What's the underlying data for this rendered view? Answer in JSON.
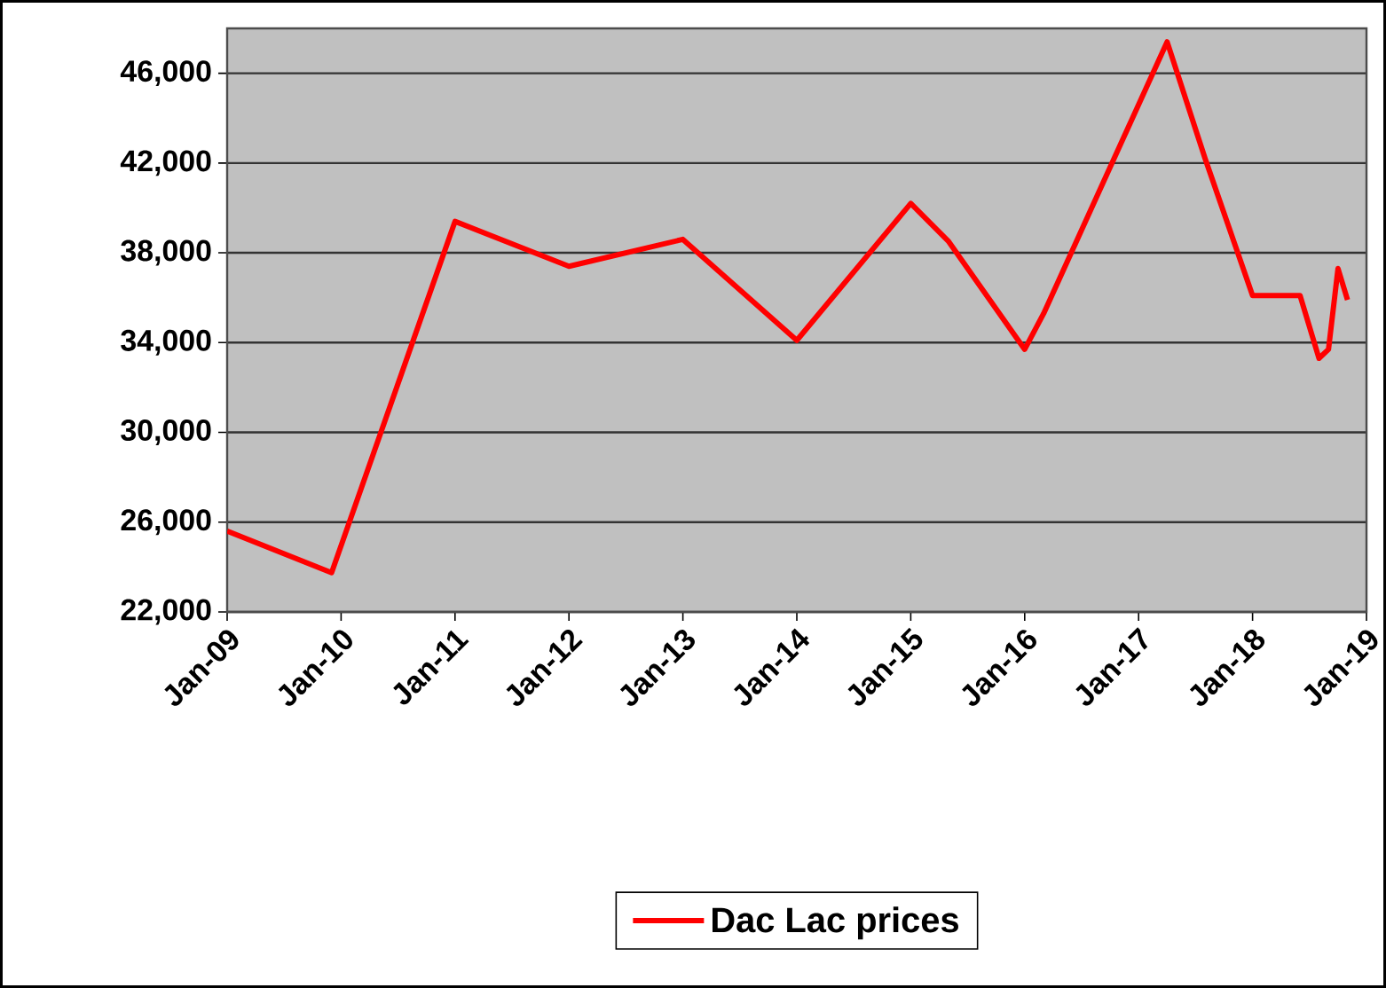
{
  "chart_data": {
    "type": "line",
    "x": [
      "2009-01",
      "2009-12",
      "2011-01",
      "2012-01",
      "2013-01",
      "2014-01",
      "2015-01",
      "2015-05",
      "2016-01",
      "2016-03",
      "2017-04",
      "2017-08",
      "2018-01",
      "2018-06",
      "2018-08",
      "2018-09",
      "2018-10",
      "2018-11"
    ],
    "series": [
      {
        "name": "Dac Lac prices",
        "color": "#ff0000",
        "values": [
          25600,
          23750,
          39400,
          37400,
          38600,
          34100,
          40200,
          38500,
          33700,
          35300,
          47400,
          42200,
          36100,
          36100,
          33300,
          33700,
          37300,
          35900
        ]
      }
    ],
    "xlim": [
      "2009-01",
      "2019-01"
    ],
    "xticks": [
      {
        "value": "2009-01",
        "label": "Jan-09"
      },
      {
        "value": "2010-01",
        "label": "Jan-10"
      },
      {
        "value": "2011-01",
        "label": "Jan-11"
      },
      {
        "value": "2012-01",
        "label": "Jan-12"
      },
      {
        "value": "2013-01",
        "label": "Jan-13"
      },
      {
        "value": "2014-01",
        "label": "Jan-14"
      },
      {
        "value": "2015-01",
        "label": "Jan-15"
      },
      {
        "value": "2016-01",
        "label": "Jan-16"
      },
      {
        "value": "2017-01",
        "label": "Jan-17"
      },
      {
        "value": "2018-01",
        "label": "Jan-18"
      },
      {
        "value": "2019-01",
        "label": "Jan-19"
      }
    ],
    "ylim": [
      22000,
      48000
    ],
    "yticks": [
      {
        "value": 22000,
        "label": "22,000"
      },
      {
        "value": 26000,
        "label": "26,000"
      },
      {
        "value": 30000,
        "label": "30,000"
      },
      {
        "value": 34000,
        "label": "34,000"
      },
      {
        "value": 38000,
        "label": "38,000"
      },
      {
        "value": 42000,
        "label": "42,000"
      },
      {
        "value": 46000,
        "label": "46,000"
      }
    ],
    "grid": "y",
    "legend": "bottom"
  }
}
